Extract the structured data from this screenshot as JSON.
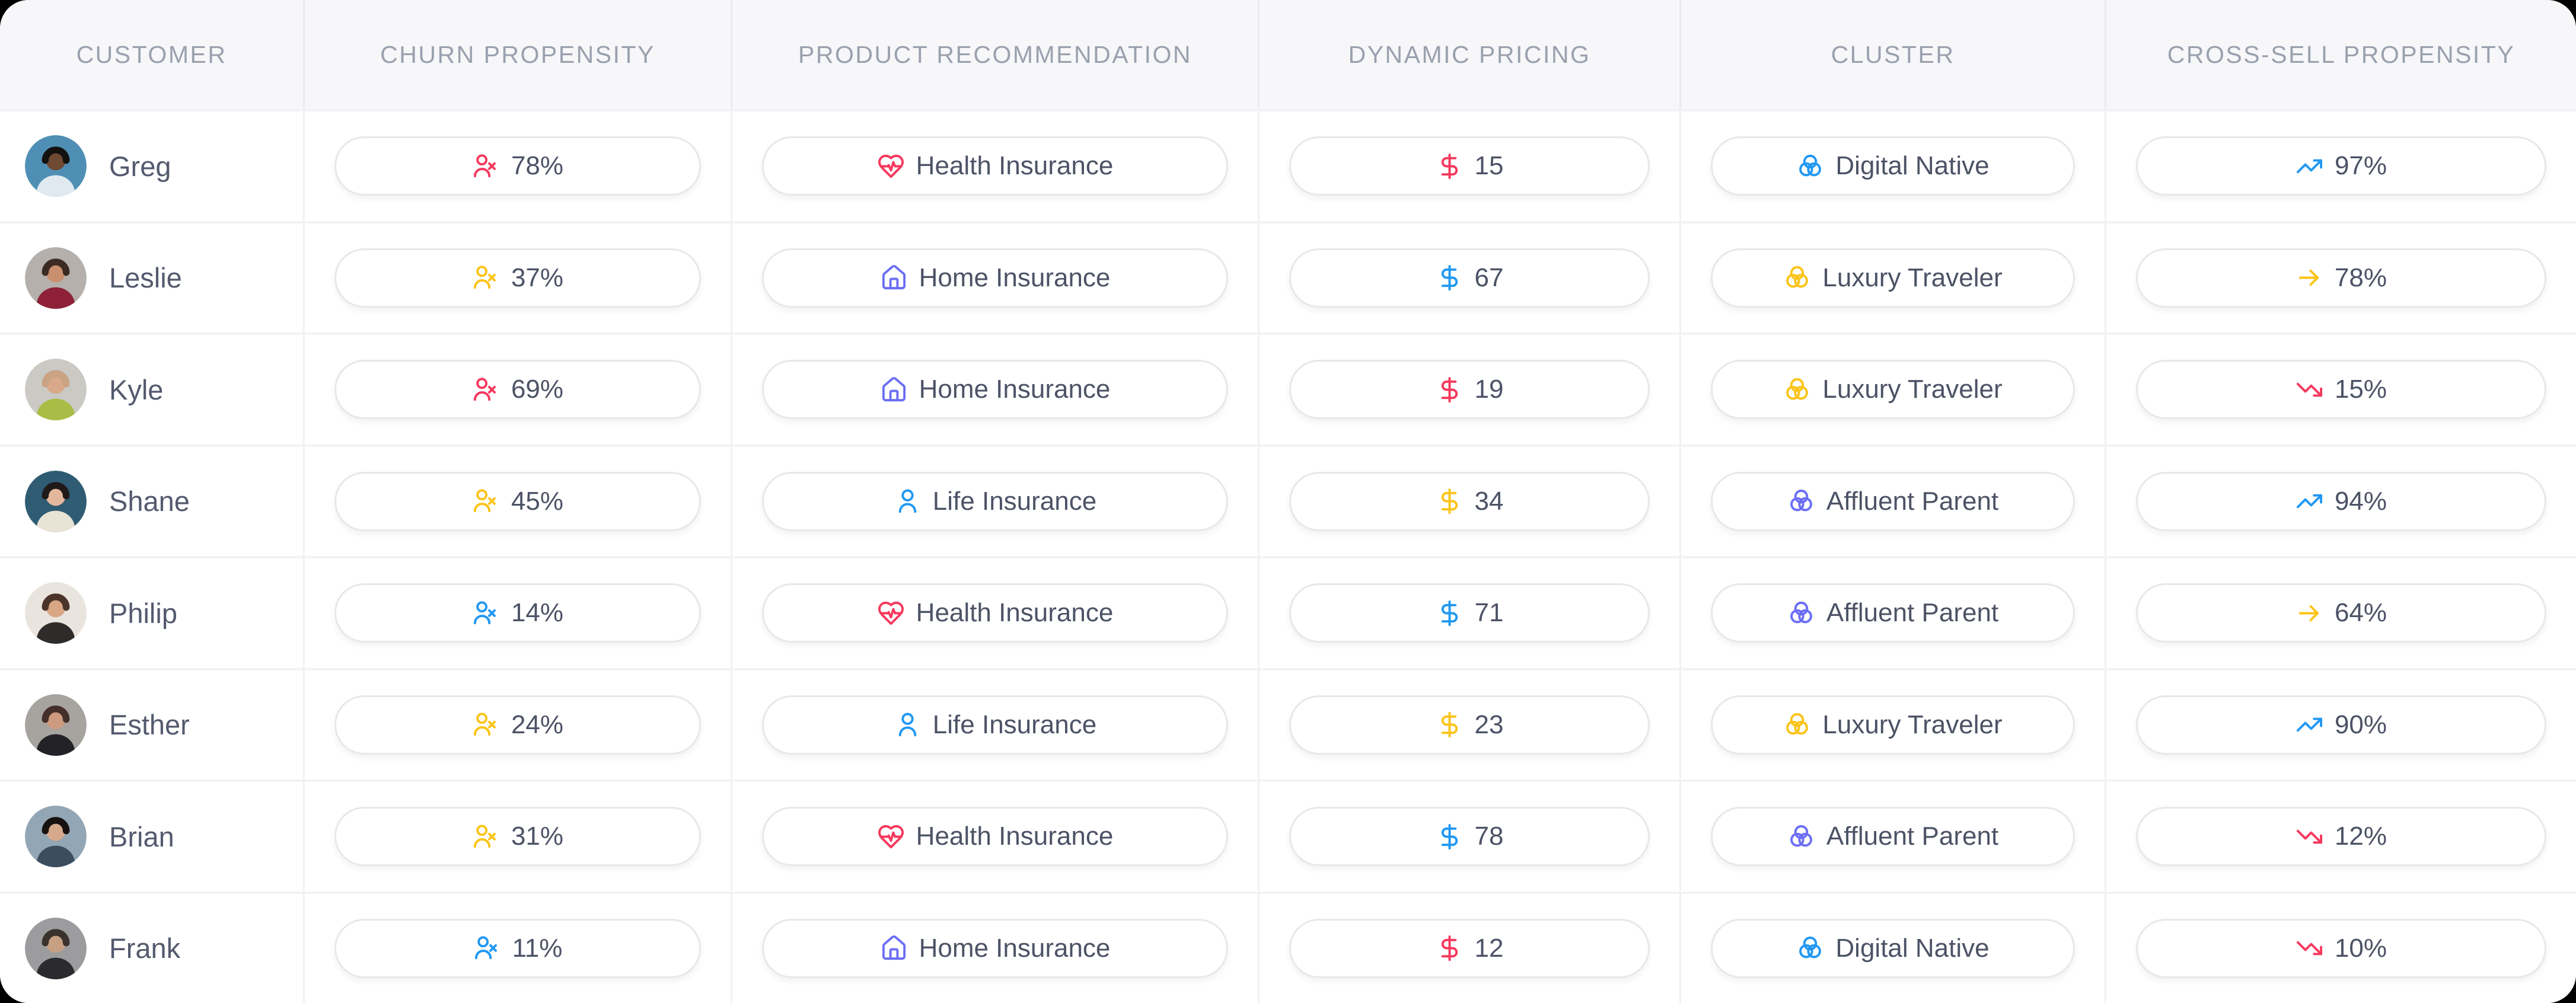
{
  "colors": {
    "pink": "#f5395e",
    "yellow": "#fcc419",
    "blue": "#2198f3",
    "indigo": "#6c6ef5",
    "text": "#4d5366",
    "header_text": "#9aa0ae",
    "header_bg": "#f7f7f9",
    "pill_border": "#e8e8ec",
    "row_divider": "#f3f3f6"
  },
  "table": {
    "columns": [
      {
        "key": "customer",
        "label": "CUSTOMER"
      },
      {
        "key": "churn",
        "label": "CHURN PROPENSITY"
      },
      {
        "key": "product",
        "label": "PRODUCT RECOMMENDATION"
      },
      {
        "key": "pricing",
        "label": "DYNAMIC PRICING"
      },
      {
        "key": "cluster",
        "label": "CLUSTER"
      },
      {
        "key": "cross_sell",
        "label": "CROSS-SELL PROPENSITY"
      }
    ],
    "rows": [
      {
        "name": "Greg",
        "avatar": {
          "bg": "#4f8fb5",
          "shirt": "#dfe9ef",
          "skin": "#6f4a33",
          "hair": "#141210"
        },
        "churn": {
          "value": "78%",
          "icon": "user-x-icon",
          "color": "pink"
        },
        "product": {
          "label": "Health Insurance",
          "icon": "heart-pulse-icon",
          "color": "pink"
        },
        "pricing": {
          "value": "15",
          "icon": "dollar-icon",
          "color": "pink"
        },
        "cluster": {
          "label": "Digital Native",
          "icon": "venn-icon",
          "color": "blue"
        },
        "cross_sell": {
          "value": "97%",
          "icon": "trend-up-icon",
          "color": "blue"
        }
      },
      {
        "name": "Leslie",
        "avatar": {
          "bg": "#b5b0ac",
          "shirt": "#8e2137",
          "skin": "#c9906f",
          "hair": "#3c2b22"
        },
        "churn": {
          "value": "37%",
          "icon": "user-x-icon",
          "color": "yellow"
        },
        "product": {
          "label": "Home Insurance",
          "icon": "house-icon",
          "color": "indigo"
        },
        "pricing": {
          "value": "67",
          "icon": "dollar-icon",
          "color": "blue"
        },
        "cluster": {
          "label": "Luxury Traveler",
          "icon": "venn-icon",
          "color": "yellow"
        },
        "cross_sell": {
          "value": "78%",
          "icon": "arrow-right-icon",
          "color": "yellow"
        }
      },
      {
        "name": "Kyle",
        "avatar": {
          "bg": "#cbc9c4",
          "shirt": "#a9bc45",
          "skin": "#d8a98a",
          "hair": "#c9a384"
        },
        "churn": {
          "value": "69%",
          "icon": "user-x-icon",
          "color": "pink"
        },
        "product": {
          "label": "Home Insurance",
          "icon": "house-icon",
          "color": "indigo"
        },
        "pricing": {
          "value": "19",
          "icon": "dollar-icon",
          "color": "pink"
        },
        "cluster": {
          "label": "Luxury Traveler",
          "icon": "venn-icon",
          "color": "yellow"
        },
        "cross_sell": {
          "value": "15%",
          "icon": "trend-down-icon",
          "color": "pink"
        }
      },
      {
        "name": "Shane",
        "avatar": {
          "bg": "#2f5c73",
          "shirt": "#e9e3d6",
          "skin": "#e3b79c",
          "hair": "#20191a"
        },
        "churn": {
          "value": "45%",
          "icon": "user-x-icon",
          "color": "yellow"
        },
        "product": {
          "label": "Life Insurance",
          "icon": "user-icon",
          "color": "blue"
        },
        "pricing": {
          "value": "34",
          "icon": "dollar-icon",
          "color": "yellow"
        },
        "cluster": {
          "label": "Affluent Parent",
          "icon": "venn-icon",
          "color": "indigo"
        },
        "cross_sell": {
          "value": "94%",
          "icon": "trend-up-icon",
          "color": "blue"
        }
      },
      {
        "name": "Philip",
        "avatar": {
          "bg": "#e9e4de",
          "shirt": "#2d2c2a",
          "skin": "#d8a685",
          "hair": "#4a342a"
        },
        "churn": {
          "value": "14%",
          "icon": "user-x-icon",
          "color": "blue"
        },
        "product": {
          "label": "Health Insurance",
          "icon": "heart-pulse-icon",
          "color": "pink"
        },
        "pricing": {
          "value": "71",
          "icon": "dollar-icon",
          "color": "blue"
        },
        "cluster": {
          "label": "Affluent Parent",
          "icon": "venn-icon",
          "color": "indigo"
        },
        "cross_sell": {
          "value": "64%",
          "icon": "arrow-right-icon",
          "color": "yellow"
        }
      },
      {
        "name": "Esther",
        "avatar": {
          "bg": "#a7a4a0",
          "shirt": "#232226",
          "skin": "#cd9b80",
          "hair": "#43302a"
        },
        "churn": {
          "value": "24%",
          "icon": "user-x-icon",
          "color": "yellow"
        },
        "product": {
          "label": "Life Insurance",
          "icon": "user-icon",
          "color": "blue"
        },
        "pricing": {
          "value": "23",
          "icon": "dollar-icon",
          "color": "yellow"
        },
        "cluster": {
          "label": "Luxury Traveler",
          "icon": "venn-icon",
          "color": "yellow"
        },
        "cross_sell": {
          "value": "90%",
          "icon": "trend-up-icon",
          "color": "blue"
        }
      },
      {
        "name": "Brian",
        "avatar": {
          "bg": "#93a6b6",
          "shirt": "#3c4d5e",
          "skin": "#d6a88c",
          "hair": "#17120f"
        },
        "churn": {
          "value": "31%",
          "icon": "user-x-icon",
          "color": "yellow"
        },
        "product": {
          "label": "Health Insurance",
          "icon": "heart-pulse-icon",
          "color": "pink"
        },
        "pricing": {
          "value": "78",
          "icon": "dollar-icon",
          "color": "blue"
        },
        "cluster": {
          "label": "Affluent Parent",
          "icon": "venn-icon",
          "color": "indigo"
        },
        "cross_sell": {
          "value": "12%",
          "icon": "trend-down-icon",
          "color": "pink"
        }
      },
      {
        "name": "Frank",
        "avatar": {
          "bg": "#9c9c9e",
          "shirt": "#2b2b2f",
          "skin": "#c79f82",
          "hair": "#3a332d"
        },
        "churn": {
          "value": "11%",
          "icon": "user-x-icon",
          "color": "blue"
        },
        "product": {
          "label": "Home Insurance",
          "icon": "house-icon",
          "color": "indigo"
        },
        "pricing": {
          "value": "12",
          "icon": "dollar-icon",
          "color": "pink"
        },
        "cluster": {
          "label": "Digital Native",
          "icon": "venn-icon",
          "color": "blue"
        },
        "cross_sell": {
          "value": "10%",
          "icon": "trend-down-icon",
          "color": "pink"
        }
      }
    ]
  }
}
